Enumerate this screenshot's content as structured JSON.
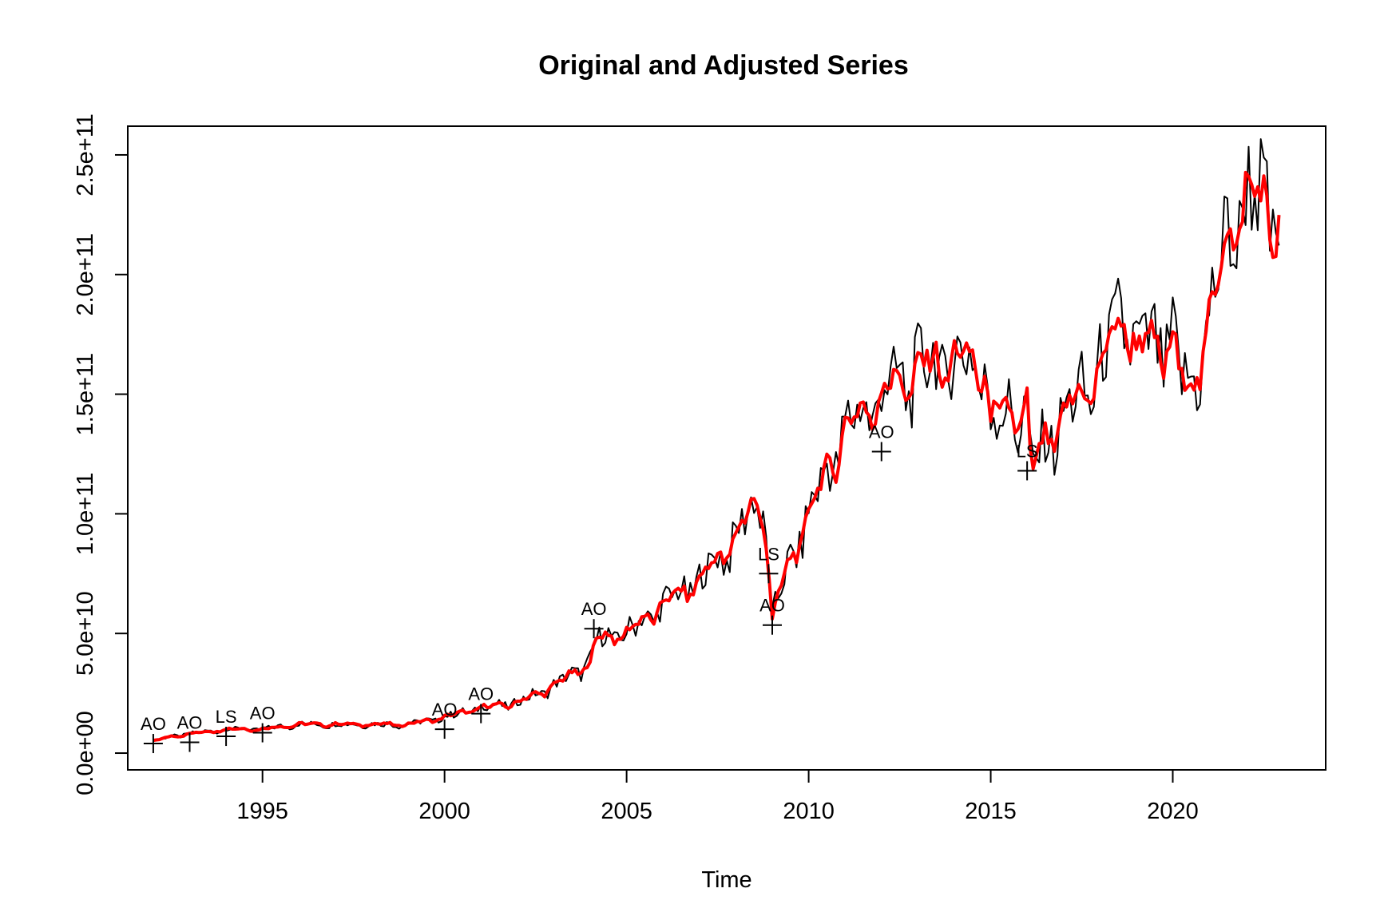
{
  "chart_data": {
    "type": "line",
    "title": "Original and Adjusted Series",
    "xlabel": "Time",
    "ylabel": "",
    "xlim": [
      1991.3,
      2024.2
    ],
    "ylim": [
      -7000000000,
      262000000000
    ],
    "x_ticks": [
      {
        "value": 1995,
        "label": "1995"
      },
      {
        "value": 2000,
        "label": "2000"
      },
      {
        "value": 2005,
        "label": "2005"
      },
      {
        "value": 2010,
        "label": "2010"
      },
      {
        "value": 2015,
        "label": "2015"
      },
      {
        "value": 2020,
        "label": "2020"
      }
    ],
    "y_ticks": [
      {
        "value": 0,
        "label": "0.0e+00"
      },
      {
        "value": 50000000000,
        "label": "5.0e+10"
      },
      {
        "value": 100000000000,
        "label": "1.0e+11"
      },
      {
        "value": 150000000000,
        "label": "1.5e+11"
      },
      {
        "value": 200000000000,
        "label": "2.0e+11"
      },
      {
        "value": 250000000000,
        "label": "2.5e+11"
      }
    ],
    "grid": false,
    "series": [
      {
        "color": "#000000",
        "anchors": [
          [
            1992.0,
            5000000000
          ],
          [
            1992.5,
            7000000000
          ],
          [
            1993.0,
            8000000000
          ],
          [
            1994.0,
            10000000000
          ],
          [
            1995.0,
            10000000000
          ],
          [
            1996.0,
            12000000000
          ],
          [
            1997.0,
            12000000000
          ],
          [
            1998.0,
            12000000000
          ],
          [
            1999.0,
            12000000000
          ],
          [
            2000.0,
            15000000000
          ],
          [
            2001.0,
            19000000000
          ],
          [
            2002.0,
            21000000000
          ],
          [
            2003.0,
            28000000000
          ],
          [
            2004.0,
            38000000000
          ],
          [
            2004.2,
            48000000000
          ],
          [
            2005.0,
            50000000000
          ],
          [
            2006.0,
            62000000000
          ],
          [
            2007.0,
            72000000000
          ],
          [
            2008.0,
            90000000000
          ],
          [
            2008.5,
            104000000000
          ],
          [
            2008.8,
            100000000000
          ],
          [
            2009.0,
            55000000000
          ],
          [
            2009.3,
            72000000000
          ],
          [
            2010.0,
            100000000000
          ],
          [
            2011.0,
            135000000000
          ],
          [
            2012.0,
            150000000000
          ],
          [
            2013.0,
            160000000000
          ],
          [
            2014.0,
            165000000000
          ],
          [
            2014.9,
            160000000000
          ],
          [
            2015.0,
            138000000000
          ],
          [
            2016.0,
            145000000000
          ],
          [
            2016.1,
            115000000000
          ],
          [
            2016.5,
            130000000000
          ],
          [
            2017.0,
            140000000000
          ],
          [
            2018.0,
            160000000000
          ],
          [
            2018.7,
            185000000000
          ],
          [
            2019.0,
            168000000000
          ],
          [
            2020.0,
            172000000000
          ],
          [
            2020.2,
            155000000000
          ],
          [
            2020.5,
            152000000000
          ],
          [
            2021.0,
            180000000000
          ],
          [
            2021.5,
            215000000000
          ],
          [
            2022.0,
            232000000000
          ],
          [
            2022.5,
            230000000000
          ],
          [
            2022.9,
            222000000000
          ]
        ]
      },
      {
        "color": "#ff0000",
        "anchors": [
          [
            1992.0,
            5000000000
          ],
          [
            1992.5,
            7000000000
          ],
          [
            1993.0,
            8000000000
          ],
          [
            1994.0,
            10000000000
          ],
          [
            1995.0,
            10000000000
          ],
          [
            1996.0,
            12000000000
          ],
          [
            1997.0,
            12000000000
          ],
          [
            1998.0,
            12000000000
          ],
          [
            1999.0,
            12000000000
          ],
          [
            2000.0,
            15000000000
          ],
          [
            2001.0,
            19000000000
          ],
          [
            2002.0,
            21000000000
          ],
          [
            2003.0,
            28000000000
          ],
          [
            2004.0,
            38000000000
          ],
          [
            2004.2,
            48000000000
          ],
          [
            2005.0,
            50000000000
          ],
          [
            2006.0,
            62000000000
          ],
          [
            2007.0,
            72000000000
          ],
          [
            2008.0,
            90000000000
          ],
          [
            2008.5,
            104000000000
          ],
          [
            2008.8,
            100000000000
          ],
          [
            2009.0,
            55000000000
          ],
          [
            2009.3,
            72000000000
          ],
          [
            2010.0,
            100000000000
          ],
          [
            2011.0,
            135000000000
          ],
          [
            2012.0,
            150000000000
          ],
          [
            2013.0,
            160000000000
          ],
          [
            2014.0,
            165000000000
          ],
          [
            2014.9,
            160000000000
          ],
          [
            2015.0,
            138000000000
          ],
          [
            2016.0,
            145000000000
          ],
          [
            2016.1,
            115000000000
          ],
          [
            2016.5,
            130000000000
          ],
          [
            2017.0,
            140000000000
          ],
          [
            2018.0,
            160000000000
          ],
          [
            2018.7,
            185000000000
          ],
          [
            2019.0,
            168000000000
          ],
          [
            2020.0,
            172000000000
          ],
          [
            2020.2,
            155000000000
          ],
          [
            2020.5,
            152000000000
          ],
          [
            2021.0,
            180000000000
          ],
          [
            2021.5,
            215000000000
          ],
          [
            2022.0,
            232000000000
          ],
          [
            2022.5,
            230000000000
          ],
          [
            2022.9,
            222000000000
          ]
        ]
      }
    ],
    "outliers": [
      {
        "x": 1992.0,
        "y": 4000000000,
        "label": "AO"
      },
      {
        "x": 1993.0,
        "y": 4500000000,
        "label": "AO"
      },
      {
        "x": 1994.0,
        "y": 7000000000,
        "label": "LS"
      },
      {
        "x": 1995.0,
        "y": 8500000000,
        "label": "AO"
      },
      {
        "x": 2000.0,
        "y": 10000000000,
        "label": "AO"
      },
      {
        "x": 2001.0,
        "y": 16500000000,
        "label": "AO"
      },
      {
        "x": 2004.1,
        "y": 52000000000,
        "label": "AO"
      },
      {
        "x": 2008.9,
        "y": 75000000000,
        "label": "LS"
      },
      {
        "x": 2009.0,
        "y": 53500000000,
        "label": "AO"
      },
      {
        "x": 2012.0,
        "y": 126000000000,
        "label": "AO"
      },
      {
        "x": 2016.0,
        "y": 118000000000,
        "label": "LS"
      }
    ]
  }
}
